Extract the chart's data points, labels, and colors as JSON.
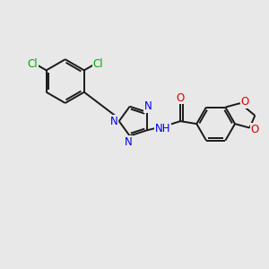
{
  "bg_color": "#e8e8e8",
  "bond_color": "#1a1a1a",
  "bond_width": 1.4,
  "cl_color": "#00aa00",
  "n_color": "#0000ee",
  "o_color": "#dd0000",
  "font_size": 8.5,
  "fig_width": 3.0,
  "fig_height": 3.0,
  "dpi": 100,
  "xlim": [
    0,
    10
  ],
  "ylim": [
    0,
    10
  ]
}
